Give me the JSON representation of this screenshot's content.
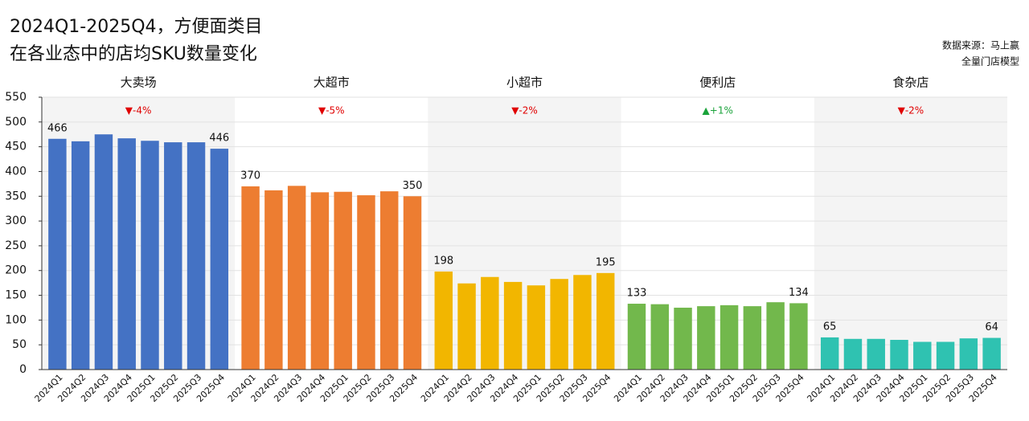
{
  "chart_data": {
    "type": "bar",
    "title": [
      "2024Q1-2025Q4，方便面类目",
      "在各业态中的店均SKU数量变化"
    ],
    "source": [
      "数据来源：马上赢",
      "全量门店模型"
    ],
    "ylim": [
      0,
      550
    ],
    "yticks": [
      0,
      50,
      100,
      150,
      200,
      250,
      300,
      350,
      400,
      450,
      500,
      550
    ],
    "grid": true,
    "categories": [
      "2024Q1",
      "2024Q2",
      "2024Q3",
      "2024Q4",
      "2025Q1",
      "2025Q2",
      "2025Q3",
      "2025Q4"
    ],
    "panels": [
      {
        "name": "大卖场",
        "change": "▼-4%",
        "change_color": "#e00000",
        "color": "#4472c4",
        "values": [
          466,
          461,
          475,
          467,
          462,
          459,
          459,
          446
        ]
      },
      {
        "name": "大超市",
        "change": "▼-5%",
        "change_color": "#e00000",
        "color": "#ed7d31",
        "values": [
          370,
          362,
          371,
          358,
          359,
          352,
          360,
          350
        ]
      },
      {
        "name": "小超市",
        "change": "▼-2%",
        "change_color": "#e00000",
        "color": "#f2b600",
        "values": [
          198,
          174,
          187,
          177,
          170,
          183,
          191,
          195
        ]
      },
      {
        "name": "便利店",
        "change": "▲+1%",
        "change_color": "#1aa33a",
        "color": "#72b84c",
        "values": [
          133,
          132,
          125,
          128,
          130,
          128,
          136,
          134
        ]
      },
      {
        "name": "食杂店",
        "change": "▼-2%",
        "change_color": "#e00000",
        "color": "#2fc2b1",
        "values": [
          65,
          62,
          62,
          60,
          56,
          56,
          63,
          64
        ]
      }
    ]
  }
}
